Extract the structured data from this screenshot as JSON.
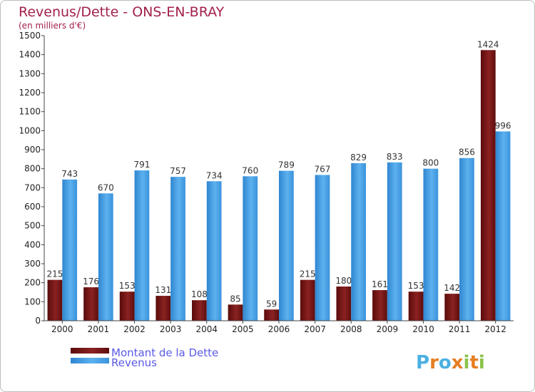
{
  "chart_data": {
    "type": "bar",
    "title": "Revenus/Dette - ONS-EN-BRAY",
    "subtitle": "(en milliers d'€)",
    "categories": [
      "2000",
      "2001",
      "2002",
      "2003",
      "2004",
      "2005",
      "2006",
      "2007",
      "2008",
      "2009",
      "2010",
      "2011",
      "2012"
    ],
    "series": [
      {
        "name": "Montant de la Dette",
        "color": "#7a1414",
        "values": [
          215,
          176,
          153,
          131,
          108,
          85,
          59,
          215,
          180,
          161,
          153,
          142,
          1424
        ]
      },
      {
        "name": "Revenus",
        "color": "#3f9be4",
        "values": [
          743,
          670,
          791,
          757,
          734,
          760,
          789,
          767,
          829,
          833,
          800,
          856,
          996
        ]
      }
    ],
    "ylim": [
      0,
      1500
    ],
    "yticks": [
      0,
      100,
      200,
      300,
      400,
      500,
      600,
      700,
      800,
      900,
      1000,
      1100,
      1200,
      1300,
      1400,
      1500
    ],
    "grid": false,
    "legend_position": "bottom-left"
  },
  "logo": {
    "text": "Proxiti",
    "colors": [
      "#4ab0e0",
      "#e67e22",
      "#4ab0e0",
      "#e67e22",
      "#8bc34a",
      "#e67e22",
      "#8bc34a"
    ]
  }
}
